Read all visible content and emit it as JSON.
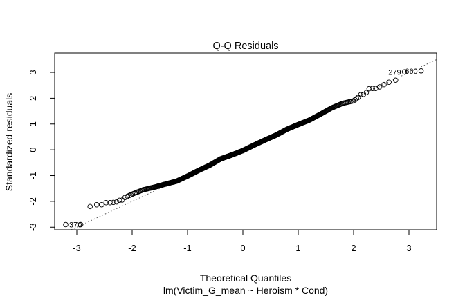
{
  "chart_data": {
    "type": "scatter",
    "title": "Q-Q Residuals",
    "xlabel": "Theoretical Quantiles",
    "xlabel2": "lm(Victim_G_mean ~ Heroism * Cond)",
    "ylabel": "Standardized residuals",
    "xlim": [
      -3.4,
      3.5
    ],
    "ylim": [
      -3.1,
      3.75
    ],
    "x_ticks": [
      -3,
      -2,
      -1,
      0,
      1,
      2,
      3
    ],
    "y_ticks": [
      -3,
      -2,
      -1,
      0,
      1,
      2,
      3
    ],
    "reference_line": {
      "slope": 1,
      "intercept": 0,
      "style": "dotted"
    },
    "n_points": 700,
    "labeled_points": [
      {
        "label": "370",
        "x": -3.2,
        "y": -2.9
      },
      {
        "label": "279",
        "x": 2.92,
        "y": 3.02
      },
      {
        "label": "660",
        "x": 3.22,
        "y": 3.06
      }
    ],
    "tail_points": [
      {
        "x": -3.2,
        "y": -2.9
      },
      {
        "x": -2.93,
        "y": -2.9
      },
      {
        "x": -2.76,
        "y": -2.2
      },
      {
        "x": -2.64,
        "y": -2.13
      },
      {
        "x": -2.55,
        "y": -2.13
      },
      {
        "x": -2.47,
        "y": -2.05
      },
      {
        "x": -2.4,
        "y": -2.05
      },
      {
        "x": -2.34,
        "y": -2.04
      },
      {
        "x": -2.28,
        "y": -2.02
      },
      {
        "x": -2.23,
        "y": -1.96
      },
      {
        "x": -2.18,
        "y": -1.95
      },
      {
        "x": -2.13,
        "y": -1.85
      },
      {
        "x": 2.13,
        "y": 2.14
      },
      {
        "x": 2.18,
        "y": 2.15
      },
      {
        "x": 2.23,
        "y": 2.22
      },
      {
        "x": 2.28,
        "y": 2.37
      },
      {
        "x": 2.34,
        "y": 2.38
      },
      {
        "x": 2.4,
        "y": 2.38
      },
      {
        "x": 2.47,
        "y": 2.44
      },
      {
        "x": 2.55,
        "y": 2.53
      },
      {
        "x": 2.64,
        "y": 2.62
      },
      {
        "x": 2.76,
        "y": 2.7
      },
      {
        "x": 2.92,
        "y": 3.02
      },
      {
        "x": 3.22,
        "y": 3.06
      }
    ],
    "curve": [
      {
        "x": -2.1,
        "y": -1.82
      },
      {
        "x": -2.0,
        "y": -1.72
      },
      {
        "x": -1.8,
        "y": -1.55
      },
      {
        "x": -1.6,
        "y": -1.45
      },
      {
        "x": -1.4,
        "y": -1.33
      },
      {
        "x": -1.2,
        "y": -1.22
      },
      {
        "x": -1.0,
        "y": -1.02
      },
      {
        "x": -0.8,
        "y": -0.8
      },
      {
        "x": -0.6,
        "y": -0.6
      },
      {
        "x": -0.4,
        "y": -0.35
      },
      {
        "x": -0.2,
        "y": -0.2
      },
      {
        "x": 0.0,
        "y": -0.03
      },
      {
        "x": 0.2,
        "y": 0.18
      },
      {
        "x": 0.4,
        "y": 0.38
      },
      {
        "x": 0.6,
        "y": 0.57
      },
      {
        "x": 0.8,
        "y": 0.8
      },
      {
        "x": 1.0,
        "y": 0.98
      },
      {
        "x": 1.2,
        "y": 1.15
      },
      {
        "x": 1.4,
        "y": 1.38
      },
      {
        "x": 1.6,
        "y": 1.62
      },
      {
        "x": 1.8,
        "y": 1.8
      },
      {
        "x": 2.0,
        "y": 1.9
      },
      {
        "x": 2.1,
        "y": 2.06
      }
    ]
  }
}
